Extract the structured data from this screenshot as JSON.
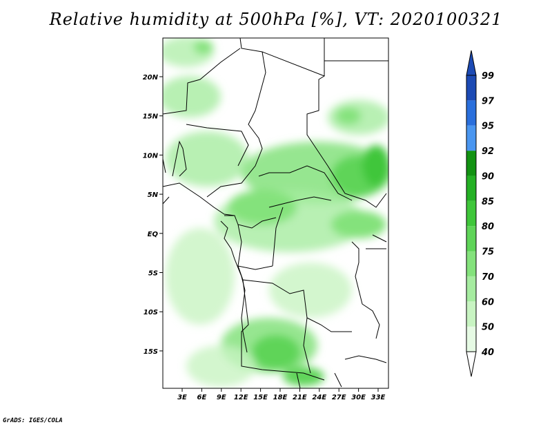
{
  "title": "Relative humidity at 500hPa [%], VT: 2020100321",
  "credit": "GrADS: IGES/COLA",
  "map": {
    "lat_labels": [
      "20N",
      "15N",
      "10N",
      "5N",
      "EQ",
      "5S",
      "10S",
      "15S"
    ],
    "lon_labels": [
      "3E",
      "6E",
      "9E",
      "12E",
      "15E",
      "18E",
      "21E",
      "24E",
      "27E",
      "30E",
      "33E"
    ]
  },
  "colorbar": {
    "levels": [
      "40",
      "50",
      "60",
      "70",
      "75",
      "80",
      "85",
      "90",
      "92",
      "95",
      "97",
      "99"
    ],
    "colors": [
      "#ffffff",
      "#e6fae4",
      "#c8f4c2",
      "#a6eca0",
      "#84e27c",
      "#5fd458",
      "#3fc63a",
      "#24b024",
      "#129212",
      "#4a96f0",
      "#2a6fdc",
      "#1c4ab4"
    ]
  }
}
